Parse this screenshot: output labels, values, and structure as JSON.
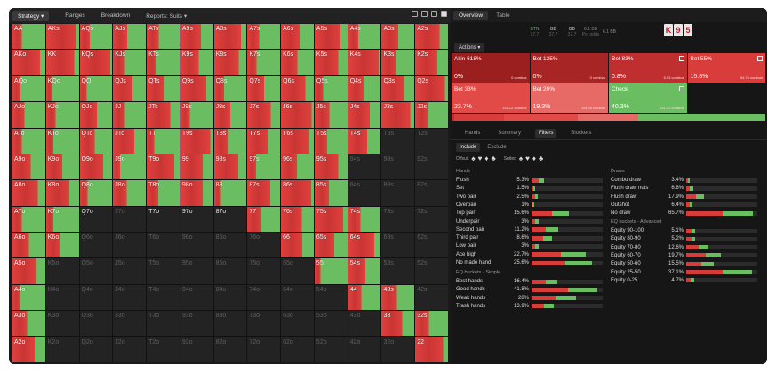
{
  "toolbar": {
    "strategy_label": "Strategy",
    "ranges_label": "Ranges",
    "breakdown_label": "Breakdown",
    "reports_label": "Reports: Suits"
  },
  "colors": {
    "red": "#e0403e",
    "green": "#6bbd61",
    "darkred": "#8b1c1c",
    "lightred": "#e86a66"
  },
  "grid": {
    "rows": [
      [
        "AA",
        "AKs",
        "AQs",
        "AJs",
        "ATs",
        "A9s",
        "A8s",
        "A7s",
        "A6s",
        "A5s",
        "A4s",
        "A3s",
        "A2s"
      ],
      [
        "AKo",
        "KK",
        "KQs",
        "KJs",
        "KTs",
        "K9s",
        "K8s",
        "K7s",
        "K6s",
        "K5s",
        "K4s",
        "K3s",
        "K2s"
      ],
      [
        "AQo",
        "KQo",
        "QQ",
        "QJs",
        "QTs",
        "Q9s",
        "Q8s",
        "Q7s",
        "Q6s",
        "Q5s",
        "Q4s",
        "Q3s",
        "Q2s"
      ],
      [
        "AJo",
        "KJo",
        "QJo",
        "JJ",
        "JTs",
        "J9s",
        "J8s",
        "J7s",
        "J6s",
        "J5s",
        "J4s",
        "J3s",
        "J2s"
      ],
      [
        "ATo",
        "KTo",
        "QTo",
        "JTo",
        "TT",
        "T9s",
        "T8s",
        "T7s",
        "T6s",
        "T5s",
        "T4s",
        "T3s",
        "T2s"
      ],
      [
        "A9o",
        "K9o",
        "Q9o",
        "J9o",
        "T9o",
        "99",
        "98s",
        "97s",
        "96s",
        "95s",
        "94s",
        "93s",
        "92s"
      ],
      [
        "A8o",
        "K8o",
        "Q8o",
        "J8o",
        "T8o",
        "98o",
        "88",
        "87s",
        "86s",
        "85s",
        "84s",
        "83s",
        "82s"
      ],
      [
        "A7o",
        "K7o",
        "Q7o",
        "J7o",
        "T7o",
        "97o",
        "87o",
        "77",
        "76s",
        "75s",
        "74s",
        "73s",
        "72s"
      ],
      [
        "A6o",
        "K6o",
        "Q6o",
        "J6o",
        "T6o",
        "96o",
        "86o",
        "76o",
        "66",
        "65s",
        "64s",
        "63s",
        "62s"
      ],
      [
        "A5o",
        "K5o",
        "Q5o",
        "J5o",
        "T5o",
        "95o",
        "85o",
        "75o",
        "65o",
        "55",
        "54s",
        "53s",
        "52s"
      ],
      [
        "A4o",
        "K4o",
        "Q4o",
        "J4o",
        "T4o",
        "94o",
        "84o",
        "74o",
        "64o",
        "54o",
        "44",
        "43s",
        "42s"
      ],
      [
        "A3o",
        "K3o",
        "Q3o",
        "J3o",
        "T3o",
        "93o",
        "83o",
        "73o",
        "63o",
        "53o",
        "43o",
        "33",
        "32s"
      ],
      [
        "A2o",
        "K2o",
        "Q2o",
        "J2o",
        "T2o",
        "92o",
        "82o",
        "72o",
        "62o",
        "52o",
        "42o",
        "32o",
        "22"
      ]
    ]
  },
  "right_tabs": {
    "overview": "Overview",
    "table": "Table"
  },
  "stats": [
    {
      "k": "",
      "v": ""
    },
    {
      "k": "",
      "v": ""
    },
    {
      "k": "",
      "v": ""
    },
    {
      "k": "",
      "v": ""
    },
    {
      "k": "BTN",
      "v": "37.7"
    },
    {
      "k": "BB",
      "v": "37.7"
    },
    {
      "k": "BB",
      "v": "37.7"
    },
    {
      "k": "6.1 BB",
      "v": "Pot odds"
    },
    {
      "k": "6.1 BB",
      "v": ""
    }
  ],
  "board": [
    "K",
    "9",
    "5"
  ],
  "actions_label": "Actions",
  "actions": [
    {
      "name": "Allin 618%",
      "pct": "0%",
      "combos": "0 combos",
      "color": "#9c1f1f"
    },
    {
      "name": "Bet 125%",
      "pct": "0%",
      "combos": "0 combos",
      "color": "#a82525"
    },
    {
      "name": "Bet 83%",
      "pct": "0.8%",
      "combos": "5.03 combos",
      "color": "#c02f2f"
    },
    {
      "name": "Bet 55%",
      "pct": "15.8%",
      "combos": "94.76 combos",
      "color": "#d83d3b"
    },
    {
      "name": "Bet 33%",
      "pct": "23.7%",
      "combos": "141.22 combos",
      "color": "#e14a46"
    },
    {
      "name": "Bet 20%",
      "pct": "19.3%",
      "combos": "115.05 combos",
      "color": "#e86a66"
    },
    {
      "name": "Check",
      "pct": "40.3%",
      "combos": "241.21 combos",
      "color": "#6bbd61"
    }
  ],
  "filter_tabs": {
    "hands": "Hands",
    "summary": "Summary",
    "filters": "Filters",
    "blockers": "Blockers"
  },
  "include_exclude": {
    "include": "Include",
    "exclude": "Exclude"
  },
  "suits": {
    "offsuit": "Offsuit",
    "suited": "Suited"
  },
  "hands_header": "Hands",
  "hands": [
    {
      "name": "Flush",
      "pct": "5.3%",
      "v": 5.3
    },
    {
      "name": "Set",
      "pct": "1.5%",
      "v": 1.5
    },
    {
      "name": "Two pair",
      "pct": "2.5%",
      "v": 2.5
    },
    {
      "name": "Overpair",
      "pct": "1%",
      "v": 1
    },
    {
      "name": "Top pair",
      "pct": "15.6%",
      "v": 15.6
    },
    {
      "name": "Underpair",
      "pct": "3%",
      "v": 3
    },
    {
      "name": "Second pair",
      "pct": "11.2%",
      "v": 11.2
    },
    {
      "name": "Third pair",
      "pct": "8.6%",
      "v": 8.6
    },
    {
      "name": "Low pair",
      "pct": "3%",
      "v": 3
    },
    {
      "name": "Ace high",
      "pct": "22.7%",
      "v": 22.7
    },
    {
      "name": "No made hand",
      "pct": "25.6%",
      "v": 25.6
    }
  ],
  "draws_header": "Draws",
  "draws": [
    {
      "name": "Combo draw",
      "pct": "3.4%",
      "v": 3.4
    },
    {
      "name": "Flush draw nuts",
      "pct": "6.6%",
      "v": 6.6
    },
    {
      "name": "Flush draw",
      "pct": "17.9%",
      "v": 17.9
    },
    {
      "name": "Outshot",
      "pct": "6.4%",
      "v": 6.4
    },
    {
      "name": "No draw",
      "pct": "65.7%",
      "v": 65.7
    }
  ],
  "eq_adv_header": "EQ buckets - Advanced",
  "eq_adv": [
    {
      "name": "Equity 90-100",
      "pct": "5.1%",
      "v": 5.1
    },
    {
      "name": "Equity 80-90",
      "pct": "5.2%",
      "v": 5.2
    },
    {
      "name": "Equity 70-80",
      "pct": "12.6%",
      "v": 12.6
    },
    {
      "name": "Equity 60-70",
      "pct": "19.7%",
      "v": 19.7
    },
    {
      "name": "Equity 50-60",
      "pct": "15.5%",
      "v": 15.5
    },
    {
      "name": "Equity 25-50",
      "pct": "37.1%",
      "v": 37.1
    },
    {
      "name": "Equity 0-25",
      "pct": "4.7%",
      "v": 4.7
    }
  ],
  "eq_simple_header": "EQ buckets - Simple",
  "eq_simple": [
    {
      "name": "Best hands",
      "pct": "16.4%",
      "v": 16.4
    },
    {
      "name": "Good hands",
      "pct": "41.8%",
      "v": 41.8
    },
    {
      "name": "Weak hands",
      "pct": "28%",
      "v": 28
    },
    {
      "name": "Trash hands",
      "pct": "13.9%",
      "v": 13.9
    }
  ]
}
